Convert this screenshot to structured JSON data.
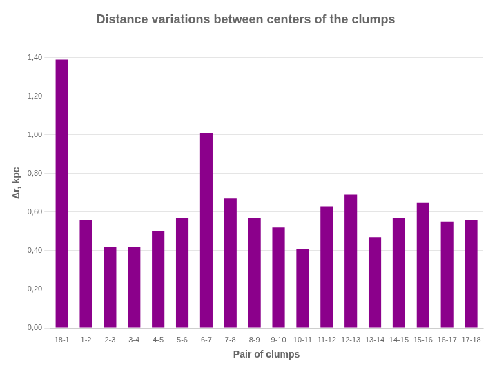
{
  "chart_data": {
    "type": "bar",
    "title": "Distance variations between centers of the clumps",
    "xlabel": "Pair of clumps",
    "ylabel": "Δr, kpc",
    "categories": [
      "18-1",
      "1-2",
      "2-3",
      "3-4",
      "4-5",
      "5-6",
      "6-7",
      "7-8",
      "8-9",
      "9-10",
      "10-11",
      "11-12",
      "12-13",
      "13-14",
      "14-15",
      "15-16",
      "16-17",
      "17-18"
    ],
    "values": [
      1.39,
      0.56,
      0.42,
      0.42,
      0.5,
      0.57,
      1.01,
      0.67,
      0.57,
      0.52,
      0.41,
      0.63,
      0.69,
      0.47,
      0.57,
      0.65,
      0.55,
      0.56
    ],
    "color": "#8B008B",
    "ylim": [
      0,
      1.5
    ],
    "yticks": [
      {
        "value": 0.0,
        "label": "0,00"
      },
      {
        "value": 0.2,
        "label": "0,20"
      },
      {
        "value": 0.4,
        "label": "0,40"
      },
      {
        "value": 0.6,
        "label": "0,60"
      },
      {
        "value": 0.8,
        "label": "0,80"
      },
      {
        "value": 1.0,
        "label": "1,00"
      },
      {
        "value": 1.2,
        "label": "1,20"
      },
      {
        "value": 1.4,
        "label": "1,40"
      }
    ],
    "grid": true
  }
}
